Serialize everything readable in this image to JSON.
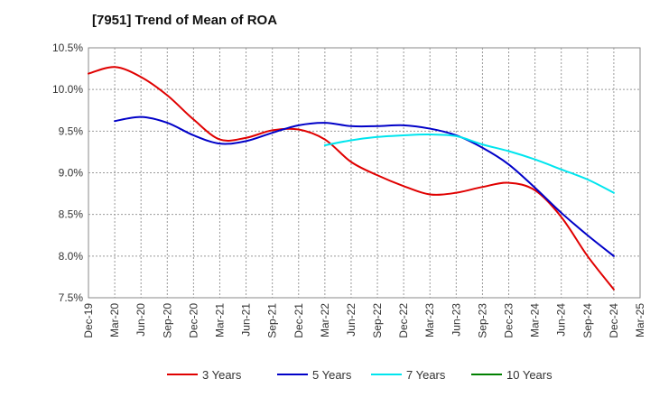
{
  "chart_data": {
    "type": "line",
    "title": "[7951]  Trend of Mean of ROA",
    "xlabel": "",
    "ylabel": "",
    "ylim": [
      7.5,
      10.5
    ],
    "yticks": [
      "7.5%",
      "8.0%",
      "8.5%",
      "9.0%",
      "9.5%",
      "10.0%",
      "10.5%"
    ],
    "ytick_values": [
      7.5,
      8.0,
      8.5,
      9.0,
      9.5,
      10.0,
      10.5
    ],
    "categories": [
      "Dec-19",
      "Mar-20",
      "Jun-20",
      "Sep-20",
      "Dec-20",
      "Mar-21",
      "Jun-21",
      "Sep-21",
      "Dec-21",
      "Mar-22",
      "Jun-22",
      "Sep-22",
      "Dec-22",
      "Mar-23",
      "Jun-23",
      "Sep-23",
      "Dec-23",
      "Mar-24",
      "Jun-24",
      "Sep-24",
      "Dec-24",
      "Mar-25"
    ],
    "grid": true,
    "legend_position": "bottom",
    "series": [
      {
        "name": "3 Years",
        "color": "#e00000",
        "values": [
          10.19,
          10.27,
          10.15,
          9.93,
          9.64,
          9.4,
          9.42,
          9.51,
          9.52,
          9.4,
          9.13,
          8.97,
          8.84,
          8.74,
          8.76,
          8.83,
          8.88,
          8.79,
          8.47,
          8.0,
          7.6,
          null
        ]
      },
      {
        "name": "5 Years",
        "color": "#0000c8",
        "values": [
          null,
          9.62,
          9.67,
          9.6,
          9.45,
          9.35,
          9.38,
          9.48,
          9.57,
          9.6,
          9.56,
          9.56,
          9.57,
          9.53,
          9.45,
          9.3,
          9.1,
          8.82,
          8.52,
          8.25,
          8.0,
          null
        ]
      },
      {
        "name": "7 Years",
        "color": "#00e5ee",
        "values": [
          null,
          null,
          null,
          null,
          null,
          null,
          null,
          null,
          null,
          9.33,
          9.39,
          9.43,
          9.45,
          9.46,
          9.44,
          9.34,
          9.26,
          9.16,
          9.04,
          8.92,
          8.76,
          null
        ]
      },
      {
        "name": "10 Years",
        "color": "#008000",
        "values": [
          null,
          null,
          null,
          null,
          null,
          null,
          null,
          null,
          null,
          null,
          null,
          null,
          null,
          null,
          null,
          null,
          null,
          null,
          null,
          null,
          null,
          null
        ]
      }
    ]
  }
}
